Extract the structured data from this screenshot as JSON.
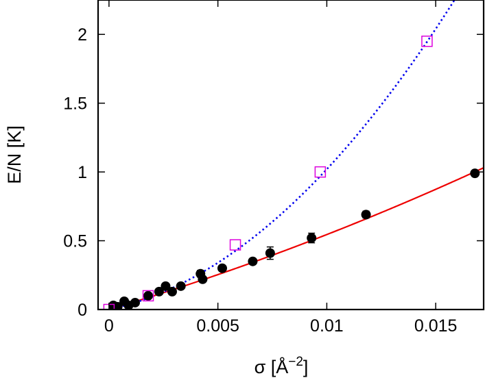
{
  "chart_data": {
    "type": "scatter",
    "xlabel": "σ [Å",
    "xlabel_superscript": "−2",
    "xlabel_suffix": "]",
    "ylabel": "E/N [K]",
    "xlim": [
      -0.0005,
      0.0172
    ],
    "ylim": [
      0,
      2.25
    ],
    "x_ticks": [
      0,
      0.005,
      0.01,
      0.015
    ],
    "x_tick_labels": [
      "0",
      "0.005",
      "0.01",
      "0.015"
    ],
    "y_ticks": [
      0,
      0.5,
      1,
      1.5,
      2
    ],
    "y_tick_labels": [
      "0",
      "0.5",
      "1",
      "1.5",
      "2"
    ],
    "grid": false,
    "series": [
      {
        "marker": "filled-circle",
        "color": "#000000",
        "points": [
          {
            "x": 0.0002,
            "y": 0.03,
            "err": 0.01
          },
          {
            "x": 0.0004,
            "y": 0.02,
            "err": 0.01
          },
          {
            "x": 0.0007,
            "y": 0.06,
            "err": 0.015
          },
          {
            "x": 0.0009,
            "y": 0.03,
            "err": 0.01
          },
          {
            "x": 0.0012,
            "y": 0.05,
            "err": 0.01
          },
          {
            "x": 0.0018,
            "y": 0.1,
            "err": 0.015
          },
          {
            "x": 0.0023,
            "y": 0.13,
            "err": 0.015
          },
          {
            "x": 0.0026,
            "y": 0.17,
            "err": 0.015
          },
          {
            "x": 0.0029,
            "y": 0.13,
            "err": 0.015
          },
          {
            "x": 0.0033,
            "y": 0.17,
            "err": 0.015
          },
          {
            "x": 0.0042,
            "y": 0.26,
            "err": 0.025
          },
          {
            "x": 0.0043,
            "y": 0.22,
            "err": 0.015
          },
          {
            "x": 0.0052,
            "y": 0.3,
            "err": 0.02
          },
          {
            "x": 0.0066,
            "y": 0.35,
            "err": 0.02
          },
          {
            "x": 0.0074,
            "y": 0.41,
            "err": 0.045
          },
          {
            "x": 0.0093,
            "y": 0.52,
            "err": 0.035
          },
          {
            "x": 0.0118,
            "y": 0.69,
            "err": 0.025
          },
          {
            "x": 0.0168,
            "y": 0.99,
            "err": 0.015
          }
        ]
      },
      {
        "marker": "open-square",
        "color": "#dd00dd",
        "points": [
          {
            "x": 0.0,
            "y": 0.0
          },
          {
            "x": 0.0018,
            "y": 0.1
          },
          {
            "x": 0.0058,
            "y": 0.47
          },
          {
            "x": 0.0097,
            "y": 1.0
          },
          {
            "x": 0.0146,
            "y": 1.95
          }
        ]
      }
    ],
    "fits": [
      {
        "style": "solid",
        "color": "#ee0000",
        "form": "a*x+b*x^2",
        "coef": [
          47.0,
          750.0
        ]
      },
      {
        "style": "dotted",
        "color": "#0000ee",
        "form": "a*x+b*x^2",
        "coef": [
          34.0,
          6800.0
        ]
      }
    ]
  }
}
